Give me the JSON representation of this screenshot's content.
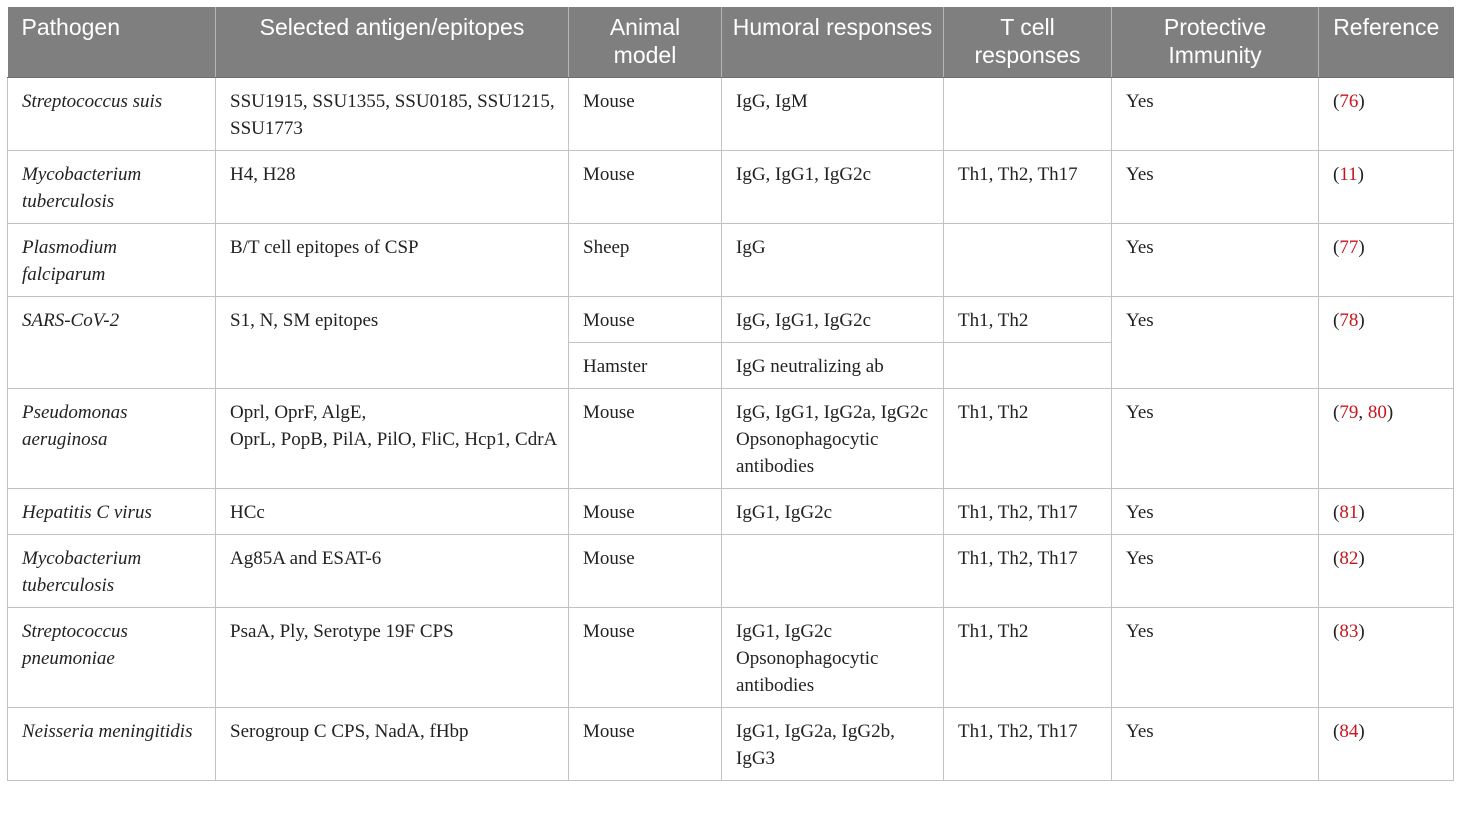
{
  "headers": {
    "pathogen": "Pathogen",
    "antigen": "Selected antigen/epitopes",
    "animal": "Animal model",
    "humoral": "Humoral responses",
    "tcell": "T cell responses",
    "protective": "Protective Immunity",
    "reference": "Reference"
  },
  "rows": [
    {
      "pathogen": "Streptococcus suis",
      "antigen": "SSU1915, SSU1355, SSU0185, SSU1215, SSU1773",
      "animal": "Mouse",
      "humoral": "IgG, IgM",
      "tcell": "",
      "protective": "Yes",
      "ref_open": "(",
      "ref1": "76",
      "ref_sep": "",
      "ref2": "",
      "ref_close": ")"
    },
    {
      "pathogen": "Mycobacterium tuberculosis",
      "antigen": "H4, H28",
      "animal": "Mouse",
      "humoral": "IgG, IgG1, IgG2c",
      "tcell": "Th1, Th2, Th17",
      "protective": "Yes",
      "ref_open": "(",
      "ref1": "11",
      "ref_sep": "",
      "ref2": "",
      "ref_close": ")"
    },
    {
      "pathogen": "Plasmodium falciparum",
      "antigen": "B/T cell epitopes of CSP",
      "animal": "Sheep",
      "humoral": "IgG",
      "tcell": "",
      "protective": "Yes",
      "ref_open": "(",
      "ref1": "77",
      "ref_sep": "",
      "ref2": "",
      "ref_close": ")"
    },
    {
      "pathogen": "SARS-CoV-2",
      "antigen": "S1, N, SM epitopes",
      "animal": "Mouse",
      "humoral": "IgG, IgG1, IgG2c",
      "tcell": "Th1, Th2",
      "protective": "Yes",
      "ref_open": "(",
      "ref1": "78",
      "ref_sep": "",
      "ref2": "",
      "ref_close": ")"
    },
    {
      "animal": "Hamster",
      "humoral": "IgG neutralizing ab",
      "tcell": ""
    },
    {
      "pathogen": "Pseudomonas aeruginosa",
      "antigen": "Oprl, OprF, AlgE,\nOprL, PopB, PilA, PilO, FliC, Hcp1, CdrA",
      "animal": "Mouse",
      "humoral": "IgG, IgG1, IgG2a, IgG2c\nOpsonophagocytic antibodies",
      "tcell": "Th1, Th2",
      "protective": "Yes",
      "ref_open": "(",
      "ref1": "79",
      "ref_sep": ", ",
      "ref2": "80",
      "ref_close": ")"
    },
    {
      "pathogen": "Hepatitis C virus",
      "antigen": "HCc",
      "animal": "Mouse",
      "humoral": "IgG1, IgG2c",
      "tcell": "Th1, Th2, Th17",
      "protective": "Yes",
      "ref_open": "(",
      "ref1": "81",
      "ref_sep": "",
      "ref2": "",
      "ref_close": ")"
    },
    {
      "pathogen": "Mycobacterium tuberculosis",
      "antigen": "Ag85A and ESAT-6",
      "animal": "Mouse",
      "humoral": "",
      "tcell": "Th1, Th2, Th17",
      "protective": "Yes",
      "ref_open": "(",
      "ref1": "82",
      "ref_sep": "",
      "ref2": "",
      "ref_close": ")"
    },
    {
      "pathogen": "Streptococcus pneumoniae",
      "antigen": "PsaA, Ply, Serotype 19F CPS",
      "animal": "Mouse",
      "humoral": "IgG1, IgG2c\nOpsonophagocytic antibodies",
      "tcell": "Th1, Th2",
      "protective": "Yes",
      "ref_open": "(",
      "ref1": "83",
      "ref_sep": "",
      "ref2": "",
      "ref_close": ")"
    },
    {
      "pathogen": "Neisseria meningitidis",
      "antigen": "Serogroup C CPS, NadA, fHbp",
      "animal": "Mouse",
      "humoral": "IgG1, IgG2a, IgG2b, IgG3",
      "tcell": "Th1, Th2, Th17",
      "protective": "Yes",
      "ref_open": "(",
      "ref1": "84",
      "ref_sep": "",
      "ref2": "",
      "ref_close": ")"
    }
  ]
}
